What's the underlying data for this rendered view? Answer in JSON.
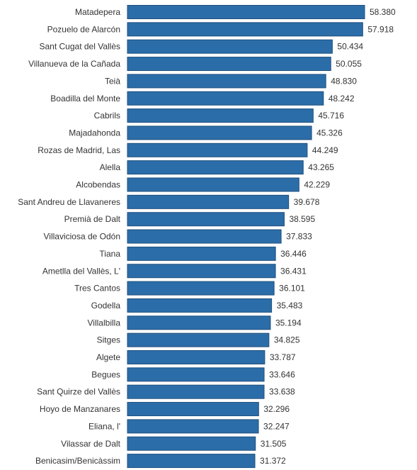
{
  "chart_data": {
    "type": "bar",
    "orientation": "horizontal",
    "categories": [
      "Matadepera",
      "Pozuelo de Alarcón",
      "Sant Cugat del Vallès",
      "Villanueva de la Cañada",
      "Teià",
      "Boadilla del Monte",
      "Cabrils",
      "Majadahonda",
      "Rozas de Madrid, Las",
      "Alella",
      "Alcobendas",
      "Sant Andreu de Llavaneres",
      "Premià de Dalt",
      "Villaviciosa de Odón",
      "Tiana",
      "Ametlla del Vallès, L'",
      "Tres Cantos",
      "Godella",
      "Villalbilla",
      "Sitges",
      "Algete",
      "Begues",
      "Sant Quirze del Vallès",
      "Hoyo de Manzanares",
      "Eliana, l'",
      "Vilassar de Dalt",
      "Benicasim/Benicàssim"
    ],
    "values": [
      58380,
      57918,
      50434,
      50055,
      48830,
      48242,
      45716,
      45326,
      44249,
      43265,
      42229,
      39678,
      38595,
      37833,
      36446,
      36431,
      36101,
      35483,
      35194,
      34825,
      33787,
      33646,
      33638,
      32296,
      32247,
      31505,
      31372
    ],
    "value_labels": [
      "58.380",
      "57.918",
      "50.434",
      "50.055",
      "48.830",
      "48.242",
      "45.716",
      "45.326",
      "44.249",
      "43.265",
      "42.229",
      "39.678",
      "38.595",
      "37.833",
      "36.446",
      "36.431",
      "36.101",
      "35.483",
      "35.194",
      "34.825",
      "33.787",
      "33.646",
      "33.638",
      "32.296",
      "32.247",
      "31.505",
      "31.372"
    ],
    "xlim": [
      0,
      58380
    ],
    "grid": false,
    "legend": "none",
    "bar_color": "#2b6da8",
    "bar_edge_color": "#1f4f7d",
    "label_color": "#333333"
  }
}
